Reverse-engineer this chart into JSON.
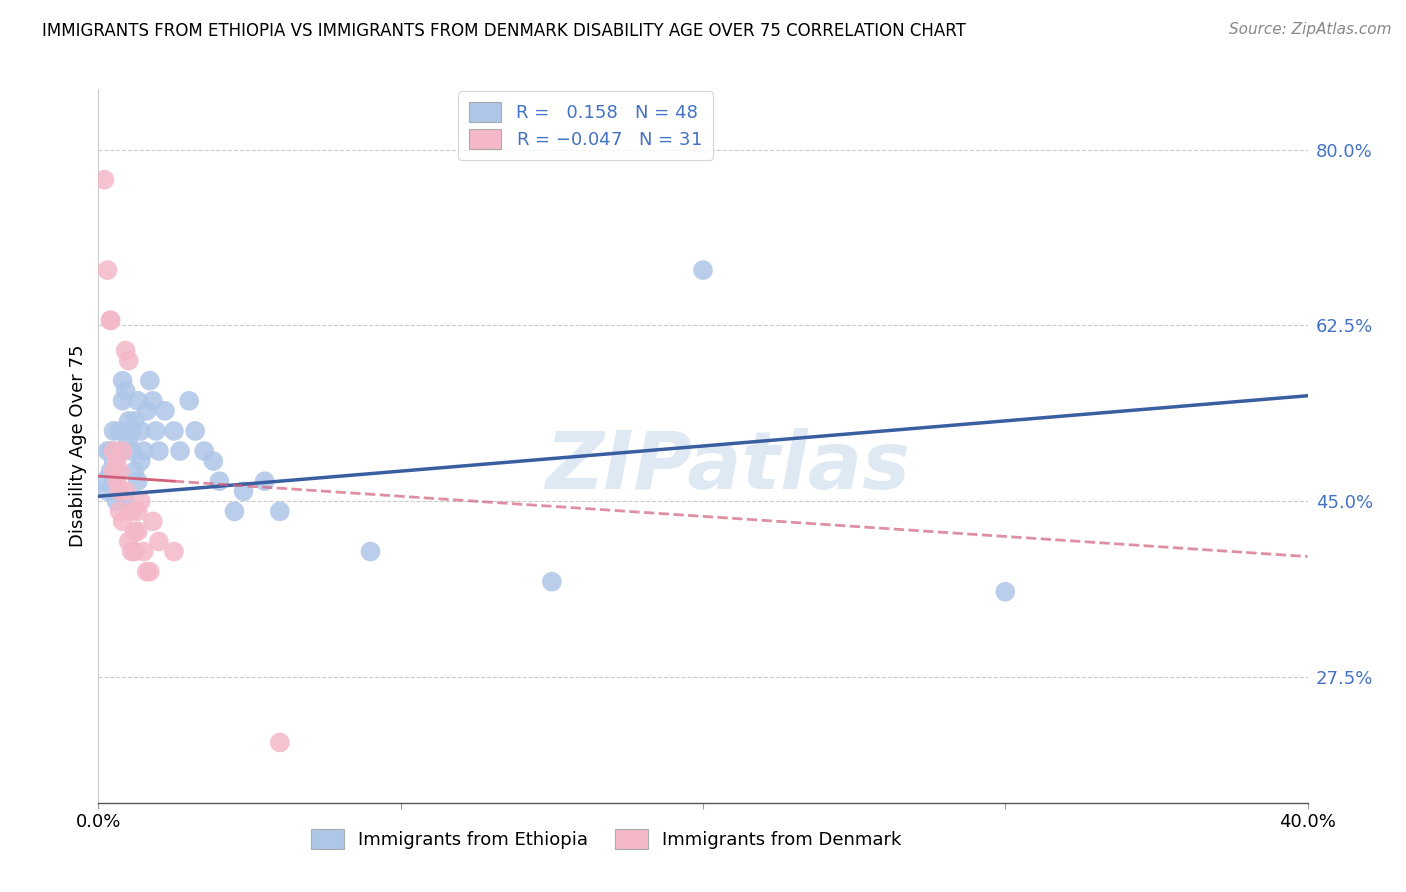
{
  "title": "IMMIGRANTS FROM ETHIOPIA VS IMMIGRANTS FROM DENMARK DISABILITY AGE OVER 75 CORRELATION CHART",
  "source": "Source: ZipAtlas.com",
  "ylabel": "Disability Age Over 75",
  "y_ticks": [
    0.275,
    0.45,
    0.625,
    0.8
  ],
  "y_tick_labels": [
    "27.5%",
    "45.0%",
    "62.5%",
    "80.0%"
  ],
  "xlim": [
    0.0,
    0.4
  ],
  "ylim": [
    0.15,
    0.86
  ],
  "watermark": "ZIPatlas",
  "ethiopia_color": "#aec6e8",
  "denmark_color": "#f4b8c8",
  "ethiopia_line_color": "#3a5fa0",
  "denmark_line_color": "#d0607a",
  "ethiopia_R": 0.158,
  "ethiopia_N": 48,
  "denmark_R": -0.047,
  "denmark_N": 31,
  "ethiopia_line": [
    0.0,
    0.455,
    0.4,
    0.555
  ],
  "denmark_line": [
    0.0,
    0.475,
    0.4,
    0.395
  ],
  "ethiopia_points": [
    [
      0.002,
      0.47
    ],
    [
      0.003,
      0.5
    ],
    [
      0.003,
      0.46
    ],
    [
      0.004,
      0.5
    ],
    [
      0.004,
      0.48
    ],
    [
      0.005,
      0.52
    ],
    [
      0.005,
      0.49
    ],
    [
      0.005,
      0.47
    ],
    [
      0.006,
      0.48
    ],
    [
      0.006,
      0.45
    ],
    [
      0.007,
      0.5
    ],
    [
      0.007,
      0.52
    ],
    [
      0.008,
      0.55
    ],
    [
      0.008,
      0.57
    ],
    [
      0.009,
      0.56
    ],
    [
      0.009,
      0.45
    ],
    [
      0.01,
      0.53
    ],
    [
      0.01,
      0.51
    ],
    [
      0.011,
      0.52
    ],
    [
      0.011,
      0.5
    ],
    [
      0.012,
      0.53
    ],
    [
      0.012,
      0.48
    ],
    [
      0.013,
      0.55
    ],
    [
      0.013,
      0.47
    ],
    [
      0.014,
      0.52
    ],
    [
      0.014,
      0.49
    ],
    [
      0.015,
      0.5
    ],
    [
      0.016,
      0.54
    ],
    [
      0.017,
      0.57
    ],
    [
      0.018,
      0.55
    ],
    [
      0.019,
      0.52
    ],
    [
      0.02,
      0.5
    ],
    [
      0.022,
      0.54
    ],
    [
      0.025,
      0.52
    ],
    [
      0.027,
      0.5
    ],
    [
      0.03,
      0.55
    ],
    [
      0.032,
      0.52
    ],
    [
      0.035,
      0.5
    ],
    [
      0.038,
      0.49
    ],
    [
      0.04,
      0.47
    ],
    [
      0.045,
      0.44
    ],
    [
      0.048,
      0.46
    ],
    [
      0.055,
      0.47
    ],
    [
      0.06,
      0.44
    ],
    [
      0.09,
      0.4
    ],
    [
      0.15,
      0.37
    ],
    [
      0.2,
      0.68
    ],
    [
      0.3,
      0.36
    ]
  ],
  "denmark_points": [
    [
      0.002,
      0.77
    ],
    [
      0.003,
      0.68
    ],
    [
      0.004,
      0.63
    ],
    [
      0.004,
      0.63
    ],
    [
      0.005,
      0.5
    ],
    [
      0.005,
      0.48
    ],
    [
      0.006,
      0.47
    ],
    [
      0.006,
      0.49
    ],
    [
      0.007,
      0.48
    ],
    [
      0.007,
      0.46
    ],
    [
      0.007,
      0.44
    ],
    [
      0.008,
      0.43
    ],
    [
      0.008,
      0.5
    ],
    [
      0.009,
      0.46
    ],
    [
      0.009,
      0.6
    ],
    [
      0.01,
      0.59
    ],
    [
      0.01,
      0.41
    ],
    [
      0.011,
      0.4
    ],
    [
      0.011,
      0.44
    ],
    [
      0.012,
      0.42
    ],
    [
      0.012,
      0.4
    ],
    [
      0.013,
      0.44
    ],
    [
      0.013,
      0.42
    ],
    [
      0.014,
      0.45
    ],
    [
      0.015,
      0.4
    ],
    [
      0.016,
      0.38
    ],
    [
      0.017,
      0.38
    ],
    [
      0.018,
      0.43
    ],
    [
      0.02,
      0.41
    ],
    [
      0.025,
      0.4
    ],
    [
      0.06,
      0.21
    ]
  ]
}
